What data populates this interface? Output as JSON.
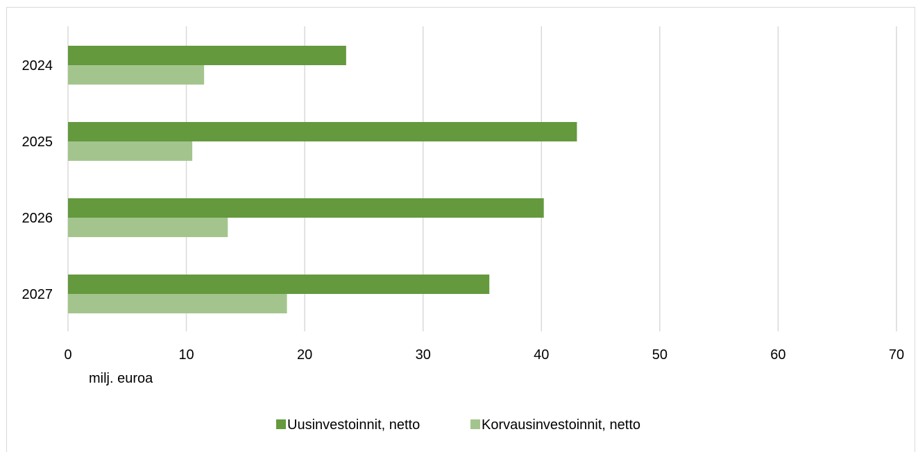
{
  "chart_data": {
    "type": "bar",
    "orientation": "horizontal",
    "categories": [
      "2024",
      "2025",
      "2026",
      "2027"
    ],
    "series": [
      {
        "name": "Uusinvestoinnit, netto",
        "values": [
          23.5,
          43.0,
          40.2,
          35.6
        ],
        "color": "#64993e"
      },
      {
        "name": "Korvausinvestoinnit, netto",
        "values": [
          11.5,
          10.5,
          13.5,
          18.5
        ],
        "color": "#a3c58d"
      }
    ],
    "xlim": [
      0,
      70
    ],
    "xticks": [
      "0",
      "10",
      "20",
      "30",
      "40",
      "50",
      "60",
      "70"
    ],
    "xlabel": "milj. euroa",
    "ylabel": "",
    "title": "",
    "grid": "vertical",
    "legend": "bottom-center"
  }
}
